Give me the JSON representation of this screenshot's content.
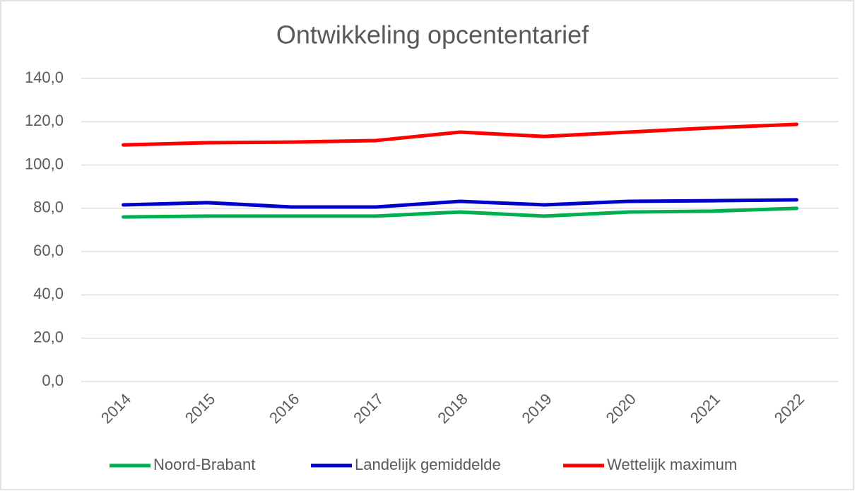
{
  "chart_data": {
    "type": "line",
    "title": "Ontwikkeling opcententarief",
    "categories": [
      "2014",
      "2015",
      "2016",
      "2017",
      "2018",
      "2019",
      "2020",
      "2021",
      "2022"
    ],
    "series": [
      {
        "name": "Noord-Brabant",
        "color": "#00b050",
        "values": [
          76.0,
          76.4,
          76.4,
          76.4,
          78.3,
          76.4,
          78.3,
          78.7,
          80.0
        ]
      },
      {
        "name": "Landelijk gemiddelde",
        "color": "#0000cc",
        "values": [
          81.6,
          82.6,
          80.6,
          80.6,
          83.2,
          81.6,
          83.2,
          83.5,
          83.9
        ]
      },
      {
        "name": "Wettelijk maximum",
        "color": "#ff0000",
        "values": [
          109.3,
          110.3,
          110.6,
          111.3,
          115.2,
          113.2,
          115.2,
          117.2,
          118.8
        ]
      }
    ],
    "ylim": [
      0,
      140
    ],
    "yticks": [
      {
        "value": 0,
        "label": "0,0"
      },
      {
        "value": 20,
        "label": "20,0"
      },
      {
        "value": 40,
        "label": "40,0"
      },
      {
        "value": 60,
        "label": "60,0"
      },
      {
        "value": 80,
        "label": "80,0"
      },
      {
        "value": 100,
        "label": "100,0"
      },
      {
        "value": 120,
        "label": "120,0"
      },
      {
        "value": 140,
        "label": "140,0"
      }
    ],
    "grid": true,
    "legend": "bottom"
  }
}
